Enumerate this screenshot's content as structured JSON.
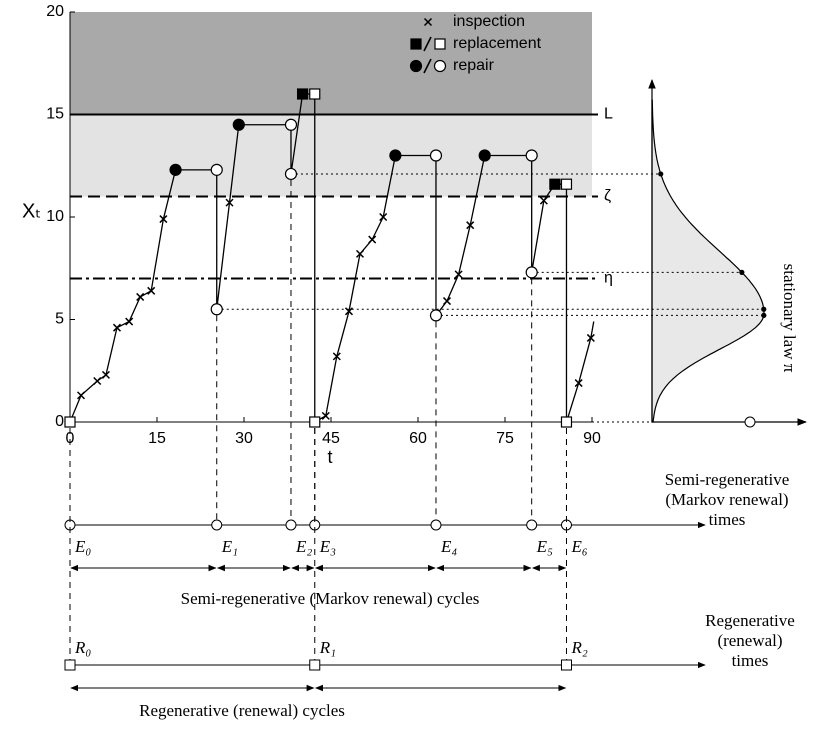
{
  "chart_data": {
    "type": "line",
    "xlabel": "t",
    "ylabel": "Xₜ",
    "xlim": [
      0,
      90
    ],
    "ylim": [
      0,
      20
    ],
    "xticks": [
      0,
      15,
      30,
      45,
      60,
      75,
      90
    ],
    "yticks": [
      0,
      5,
      10,
      15,
      20
    ],
    "zones": [
      {
        "from": 15,
        "to": 20,
        "color": "#a9a9a9"
      },
      {
        "from": 11,
        "to": 15,
        "color": "#e3e3e3"
      }
    ],
    "levels": [
      {
        "name": "L",
        "value": 15,
        "style": "solid"
      },
      {
        "name": "ζ",
        "value": 11,
        "style": "dash"
      },
      {
        "name": "η",
        "value": 7,
        "style": "dashdot"
      }
    ],
    "legend": [
      {
        "symbol": "x",
        "label": "inspection"
      },
      {
        "symbol": "square",
        "label": "replacement"
      },
      {
        "symbol": "circle",
        "label": "repair"
      }
    ],
    "series": [
      {
        "color": "#000000",
        "x": [
          0,
          1.9,
          4.7,
          6.2,
          8.1,
          10.2,
          12.1,
          14,
          16.1,
          18.2,
          25.3,
          25.3,
          27.5,
          29.1,
          38.1,
          38.1,
          40.1,
          42.2,
          42.2,
          44.1,
          46,
          48.1,
          50,
          52.1,
          54,
          56.1,
          63.1,
          63.1,
          65,
          67,
          69,
          71.5,
          79.6,
          79.6,
          81.7,
          83.6,
          85.6,
          85.6,
          87.7,
          89.8,
          90.3
        ],
        "values": [
          0,
          1.3,
          2,
          2.3,
          4.6,
          4.9,
          6.1,
          6.4,
          9.9,
          12.3,
          12.3,
          5.5,
          10.7,
          14.5,
          14.5,
          12.1,
          16,
          16,
          0,
          0.3,
          3.2,
          5.4,
          8.2,
          8.9,
          10,
          13,
          13,
          5.2,
          5.9,
          7.2,
          9.6,
          13,
          13,
          7.3,
          10.8,
          11.6,
          11.6,
          0,
          1.9,
          4.1,
          4.9
        ],
        "markers": [
          "open-square",
          "x",
          "x",
          "x",
          "x",
          "x",
          "x",
          "x",
          "x",
          "filled-circle",
          "open-circle",
          "open-circle",
          "x",
          "filled-circle",
          "open-circle",
          "open-circle",
          "filled-square",
          "open-square",
          "open-square",
          "x",
          "x",
          "x",
          "x",
          "x",
          "x",
          "filled-circle",
          "open-circle",
          "open-circle",
          "x",
          "x",
          "x",
          "filled-circle",
          "open-circle",
          "open-circle",
          "x",
          "filled-square",
          "open-square",
          "open-square",
          "x",
          "x",
          "none"
        ]
      }
    ],
    "density_label": "stationary law π",
    "semi_regenerative": {
      "label_lines": [
        "Semi-regenerative",
        "(Markov renewal)",
        "times"
      ],
      "times": [
        0,
        25.3,
        38.1,
        42.2,
        63.1,
        79.6,
        85.6
      ],
      "labels": [
        "E₀",
        "E₁",
        "E₂",
        "E₃",
        "E₄",
        "E₅",
        "E₆"
      ],
      "cycles_label": "Semi-regenerative (Markov renewal) cycles"
    },
    "regenerative": {
      "label_lines": [
        "Regenerative",
        "(renewal)",
        "times"
      ],
      "times": [
        0,
        42.2,
        85.6
      ],
      "labels": [
        "R₀",
        "R₁",
        "R₂"
      ],
      "cycles_label": "Regenerative (renewal) cycles"
    }
  }
}
